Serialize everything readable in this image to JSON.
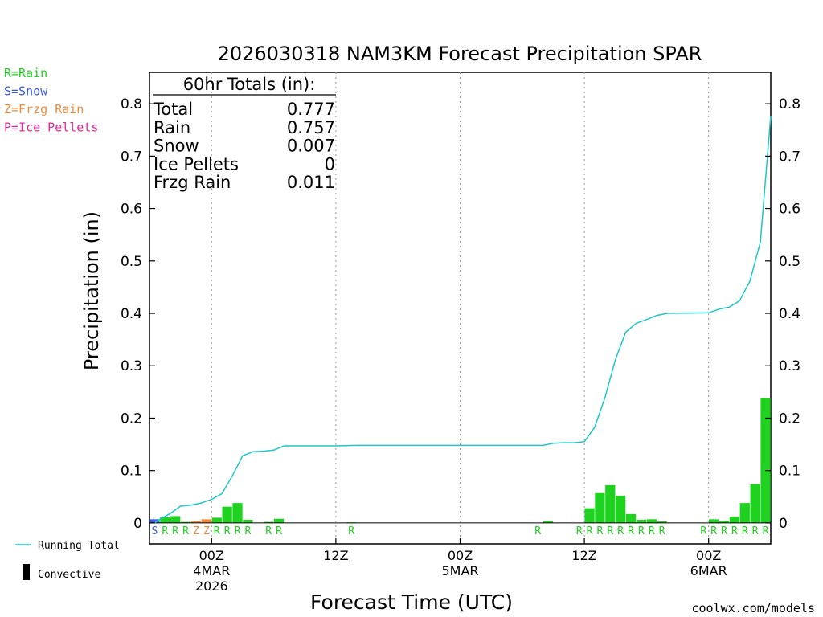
{
  "chart_data": {
    "type": "bar",
    "title": "2026030318 NAM3KM Forecast Precipitation SPAR",
    "xlabel": "Forecast Time (UTC)",
    "ylabel": "Precipitation (in)",
    "ylim": [
      -0.04,
      0.86
    ],
    "xlim": [
      0,
      60
    ],
    "grid": "vertical dotted",
    "x_ticks": [
      {
        "hour": 6,
        "labels": [
          "00Z",
          "4MAR",
          "2026"
        ]
      },
      {
        "hour": 18,
        "labels": [
          "12Z"
        ]
      },
      {
        "hour": 30,
        "labels": [
          "00Z",
          "5MAR"
        ]
      },
      {
        "hour": 42,
        "labels": [
          "12Z"
        ]
      },
      {
        "hour": 54,
        "labels": [
          "00Z",
          "6MAR"
        ]
      }
    ],
    "y_ticks": [
      "0",
      "0.1",
      "0.2",
      "0.3",
      "0.4",
      "0.5",
      "0.6",
      "0.7",
      "0.8"
    ],
    "y_tick_values": [
      0,
      0.1,
      0.2,
      0.3,
      0.4,
      0.5,
      0.6,
      0.7,
      0.8
    ],
    "legend_types": [
      {
        "code": "R",
        "text": "R=Rain",
        "color": "#1fd21f"
      },
      {
        "code": "S",
        "text": "S=Snow",
        "color": "#3a5ae0"
      },
      {
        "code": "Z",
        "text": "Z=Frzg Rain",
        "color": "#f08a3a"
      },
      {
        "code": "P",
        "text": "P=Ice Pellets",
        "color": "#e0289a"
      }
    ],
    "legend_series": {
      "running_total": "Running Total",
      "convective": "Convective"
    },
    "totals": {
      "header": "60hr Totals (in):",
      "rows": [
        {
          "label": "Total",
          "value": "0.777"
        },
        {
          "label": "Rain",
          "value": "0.757"
        },
        {
          "label": "Snow",
          "value": "0.007"
        },
        {
          "label": "Ice Pellets",
          "value": "0"
        },
        {
          "label": "Frzg Rain",
          "value": "0.011"
        }
      ]
    },
    "bars": [
      {
        "hour": 1,
        "value": 0.007,
        "type": "S"
      },
      {
        "hour": 2,
        "value": 0.011,
        "type": "R"
      },
      {
        "hour": 3,
        "value": 0.013,
        "type": "R"
      },
      {
        "hour": 4,
        "value": 0.002,
        "type": "R"
      },
      {
        "hour": 5,
        "value": 0.004,
        "type": "Z"
      },
      {
        "hour": 6,
        "value": 0.007,
        "type": "Z"
      },
      {
        "hour": 7,
        "value": 0.01,
        "type": "R"
      },
      {
        "hour": 8,
        "value": 0.031,
        "type": "R"
      },
      {
        "hour": 9,
        "value": 0.038,
        "type": "R"
      },
      {
        "hour": 10,
        "value": 0.006,
        "type": "R"
      },
      {
        "hour": 12,
        "value": 0.002,
        "type": "R"
      },
      {
        "hour": 13,
        "value": 0.008,
        "type": "R"
      },
      {
        "hour": 20,
        "value": 0.001,
        "type": "R"
      },
      {
        "hour": 39,
        "value": 0.004,
        "type": "R"
      },
      {
        "hour": 43,
        "value": 0.028,
        "type": "R"
      },
      {
        "hour": 44,
        "value": 0.057,
        "type": "R"
      },
      {
        "hour": 45,
        "value": 0.072,
        "type": "R"
      },
      {
        "hour": 46,
        "value": 0.052,
        "type": "R"
      },
      {
        "hour": 47,
        "value": 0.017,
        "type": "R"
      },
      {
        "hour": 48,
        "value": 0.006,
        "type": "R"
      },
      {
        "hour": 49,
        "value": 0.007,
        "type": "R"
      },
      {
        "hour": 50,
        "value": 0.003,
        "type": "R"
      },
      {
        "hour": 55,
        "value": 0.007,
        "type": "R"
      },
      {
        "hour": 56,
        "value": 0.004,
        "type": "R"
      },
      {
        "hour": 57,
        "value": 0.012,
        "type": "R"
      },
      {
        "hour": 58,
        "value": 0.038,
        "type": "R"
      },
      {
        "hour": 59,
        "value": 0.074,
        "type": "R"
      },
      {
        "hour": 60,
        "value": 0.238,
        "type": "R"
      }
    ],
    "type_markers": [
      {
        "hour": 1,
        "code": "S"
      },
      {
        "hour": 2,
        "code": "R"
      },
      {
        "hour": 3,
        "code": "R"
      },
      {
        "hour": 4,
        "code": "R"
      },
      {
        "hour": 5,
        "code": "Z"
      },
      {
        "hour": 6,
        "code": "Z"
      },
      {
        "hour": 7,
        "code": "R"
      },
      {
        "hour": 8,
        "code": "R"
      },
      {
        "hour": 9,
        "code": "R"
      },
      {
        "hour": 10,
        "code": "R"
      },
      {
        "hour": 12,
        "code": "R"
      },
      {
        "hour": 13,
        "code": "R"
      },
      {
        "hour": 20,
        "code": "R"
      },
      {
        "hour": 38,
        "code": "R"
      },
      {
        "hour": 42,
        "code": "R"
      },
      {
        "hour": 43,
        "code": "R"
      },
      {
        "hour": 44,
        "code": "R"
      },
      {
        "hour": 45,
        "code": "R"
      },
      {
        "hour": 46,
        "code": "R"
      },
      {
        "hour": 47,
        "code": "R"
      },
      {
        "hour": 48,
        "code": "R"
      },
      {
        "hour": 49,
        "code": "R"
      },
      {
        "hour": 50,
        "code": "R"
      },
      {
        "hour": 54,
        "code": "R"
      },
      {
        "hour": 55,
        "code": "R"
      },
      {
        "hour": 56,
        "code": "R"
      },
      {
        "hour": 57,
        "code": "R"
      },
      {
        "hour": 58,
        "code": "R"
      },
      {
        "hour": 59,
        "code": "R"
      },
      {
        "hour": 60,
        "code": "R"
      }
    ],
    "running_total": {
      "name": "Running Total",
      "color": "#1fc7c7",
      "x": [
        0.5,
        1,
        2,
        3,
        4,
        5,
        6,
        7,
        8,
        9,
        10,
        11,
        12,
        13,
        18,
        20,
        38,
        39,
        40,
        41,
        42,
        43,
        44,
        45,
        46,
        47,
        48,
        49,
        50,
        54,
        55,
        56,
        57,
        58,
        59,
        60
      ],
      "y": [
        0,
        0.007,
        0.018,
        0.032,
        0.034,
        0.038,
        0.045,
        0.056,
        0.09,
        0.128,
        0.136,
        0.137,
        0.139,
        0.147,
        0.147,
        0.148,
        0.148,
        0.152,
        0.153,
        0.153,
        0.155,
        0.183,
        0.24,
        0.312,
        0.364,
        0.381,
        0.388,
        0.396,
        0.4,
        0.401,
        0.408,
        0.412,
        0.424,
        0.462,
        0.536,
        0.777
      ]
    }
  },
  "colors": {
    "rain": "#1fd21f",
    "snow": "#3a5ae0",
    "frzg": "#f08a3a",
    "pellets": "#e0289a",
    "running_total": "#1fc7c7",
    "credit": "#e0289a"
  },
  "credit": "coolwx.com/models"
}
